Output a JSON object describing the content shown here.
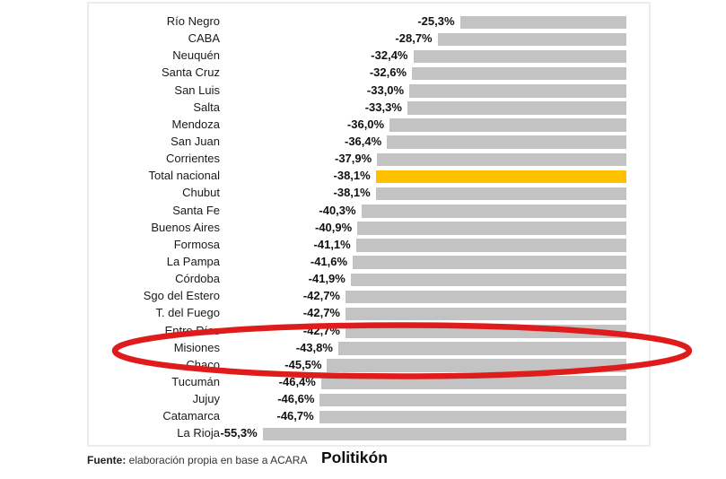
{
  "chart_data": {
    "type": "bar",
    "orientation": "horizontal",
    "value_format": "percent_negative_comma_decimal",
    "categories": [
      "Río Negro",
      "CABA",
      "Neuquén",
      "Santa Cruz",
      "San Luis",
      "Salta",
      "Mendoza",
      "San Juan",
      "Corrientes",
      "Total nacional",
      "Chubut",
      "Santa Fe",
      "Buenos Aires",
      "Formosa",
      "La Pampa",
      "Córdoba",
      "Sgo del Estero",
      "T. del Fuego",
      "Entre Ríos",
      "Misiones",
      "Chaco",
      "Tucumán",
      "Jujuy",
      "Catamarca",
      "La Rioja"
    ],
    "values": [
      -25.3,
      -28.7,
      -32.4,
      -32.6,
      -33.0,
      -33.3,
      -36.0,
      -36.4,
      -37.9,
      -38.1,
      -38.1,
      -40.3,
      -40.9,
      -41.1,
      -41.6,
      -41.9,
      -42.7,
      -42.7,
      -42.7,
      -43.8,
      -45.5,
      -46.4,
      -46.6,
      -46.7,
      -55.3
    ],
    "display_labels": [
      "-25,3%",
      "-28,7%",
      "-32,4%",
      "-32,6%",
      "-33,0%",
      "-33,3%",
      "-36,0%",
      "-36,4%",
      "-37,9%",
      "-38,1%",
      "-38,1%",
      "-40,3%",
      "-40,9%",
      "-41,1%",
      "-41,6%",
      "-41,9%",
      "-42,7%",
      "-42,7%",
      "-42,7%",
      "-43,8%",
      "-45,5%",
      "-46,4%",
      "-46,6%",
      "-46,7%",
      "-55,3%"
    ],
    "highlight_category": "Total nacional",
    "highlight_index": 9,
    "bar_color": "#c3c3c3",
    "highlight_color": "#ffc000",
    "xlim": [
      -60,
      0
    ],
    "grid": false,
    "legend": false,
    "title": "",
    "xlabel": "",
    "ylabel": "",
    "annotation": {
      "shape": "ellipse",
      "color": "#e01b1b",
      "around_categories": [
        "Misiones",
        "Chaco"
      ]
    }
  },
  "footer": {
    "source_bold": "Fuente:",
    "source_rest": " elaboración propia en base a ACARA",
    "brand": "Politikón"
  }
}
